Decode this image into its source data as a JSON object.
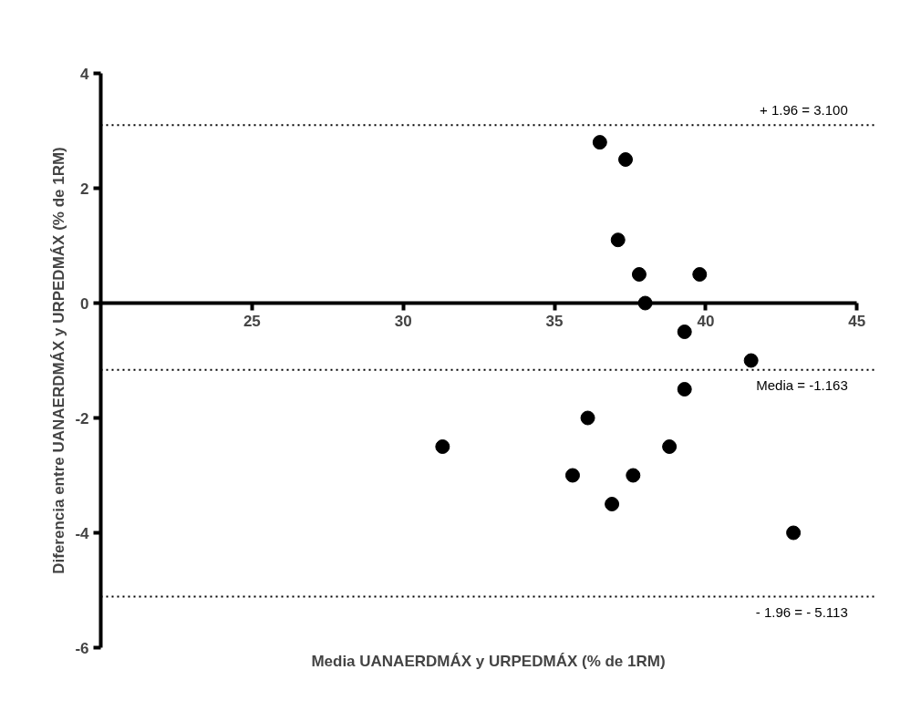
{
  "chart_data": {
    "type": "scatter",
    "xlabel": "Media UANAERDMÁX y URPEDMÁX (% de 1RM)",
    "ylabel": "Diferencia entre UANAERDMÁX y URPEDMÁX (% de 1RM)",
    "x": [
      36.5,
      37.35,
      37.1,
      37.8,
      39.8,
      38.0,
      39.3,
      41.5,
      39.3,
      36.1,
      31.3,
      38.8,
      35.6,
      37.6,
      36.9,
      42.9
    ],
    "series": [
      {
        "color": "#000000",
        "values": [
          2.8,
          2.5,
          1.1,
          0.5,
          0.5,
          0.0,
          -0.5,
          -1.0,
          -1.5,
          -2.0,
          -2.5,
          -2.5,
          -3.0,
          -3.0,
          -3.5,
          -4.0
        ]
      }
    ],
    "xlim": [
      20,
      45
    ],
    "ylim": [
      -6,
      4
    ],
    "xticks": [
      25,
      30,
      35,
      40,
      45
    ],
    "yticks": [
      -6,
      -4,
      -2,
      0,
      2,
      4
    ],
    "ref_lines": [
      {
        "axis": "y",
        "value": 3.1,
        "label": "+ 1.96 = 3.100",
        "line_style": "dotted",
        "color": "#000000"
      },
      {
        "axis": "y",
        "value": -1.163,
        "label": "Media = -1.163",
        "line_style": "dotted",
        "color": "#000000"
      },
      {
        "axis": "y",
        "value": -5.113,
        "label": "- 1.96 = - 5.113",
        "line_style": "dotted",
        "color": "#000000"
      }
    ],
    "marker": "circle",
    "grid": false
  }
}
